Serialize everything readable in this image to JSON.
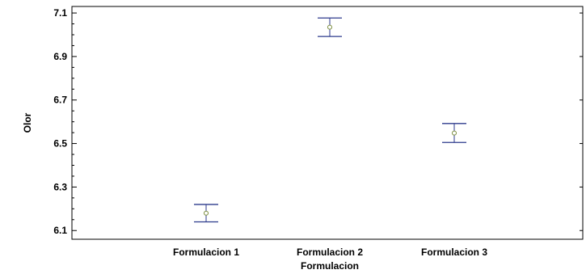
{
  "chart_data": {
    "type": "scatter",
    "xlabel": "Formulacion",
    "ylabel": "Olor",
    "categories": [
      "Formulacion 1",
      "Formulacion 2",
      "Formulacion 3"
    ],
    "ylim": [
      6.06,
      7.13
    ],
    "yticks": [
      "7.1",
      "6.9",
      "6.7",
      "6.5",
      "6.3",
      "6.1"
    ],
    "ytick_values": [
      7.1,
      6.9,
      6.7,
      6.5,
      6.3,
      6.1
    ],
    "points": [
      {
        "category": "Formulacion 1",
        "mean": 6.18,
        "lower": 6.14,
        "upper": 6.22
      },
      {
        "category": "Formulacion 2",
        "mean": 7.035,
        "lower": 6.992,
        "upper": 7.077
      },
      {
        "category": "Formulacion 3",
        "mean": 6.548,
        "lower": 6.505,
        "upper": 6.592
      }
    ],
    "grid": false,
    "colors": {
      "errorbar": "#2c3a8c",
      "marker": "#7a8c3c",
      "axis": "#000000"
    }
  }
}
